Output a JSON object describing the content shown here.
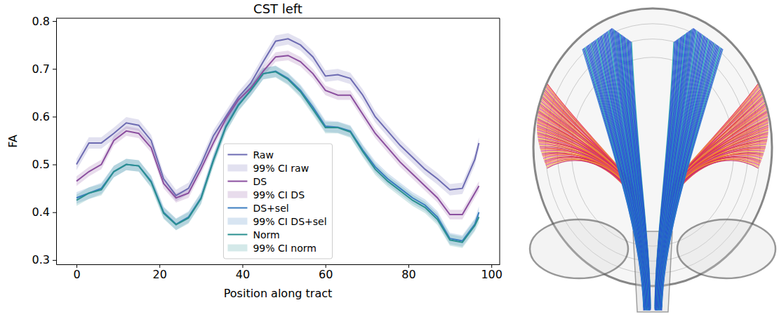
{
  "chart_data": {
    "type": "line",
    "title": "CST left",
    "x_label": "Position along tract",
    "y_label": "FA",
    "x": [
      0,
      3,
      6,
      9,
      12,
      15,
      18,
      21,
      24,
      27,
      30,
      33,
      36,
      39,
      42,
      45,
      48,
      51,
      54,
      57,
      60,
      63,
      66,
      69,
      72,
      75,
      78,
      81,
      84,
      87,
      90,
      93,
      96,
      97
    ],
    "xlim": [
      -4.9,
      102
    ],
    "xticks": [
      0,
      20,
      40,
      60,
      80,
      100
    ],
    "ylim": [
      0.291,
      0.806
    ],
    "yticks": [
      0.3,
      0.4,
      0.5,
      0.6,
      0.7,
      0.8
    ],
    "legend": "lower center",
    "series": [
      {
        "name": "Raw",
        "ci_name": "99% CI raw",
        "color": "#6d6bb2",
        "ci": 0.012,
        "values": [
          0.5,
          0.545,
          0.545,
          0.565,
          0.587,
          0.582,
          0.55,
          0.47,
          0.435,
          0.45,
          0.5,
          0.56,
          0.6,
          0.64,
          0.67,
          0.715,
          0.758,
          0.763,
          0.75,
          0.725,
          0.685,
          0.688,
          0.68,
          0.645,
          0.6,
          0.57,
          0.54,
          0.515,
          0.49,
          0.47,
          0.447,
          0.45,
          0.51,
          0.545
        ]
      },
      {
        "name": "DS",
        "ci_name": "99% CI DS",
        "color": "#8b4f9f",
        "ci": 0.01,
        "values": [
          0.465,
          0.485,
          0.5,
          0.55,
          0.57,
          0.565,
          0.535,
          0.46,
          0.43,
          0.44,
          0.49,
          0.545,
          0.595,
          0.635,
          0.66,
          0.695,
          0.725,
          0.728,
          0.715,
          0.69,
          0.655,
          0.645,
          0.645,
          0.605,
          0.565,
          0.535,
          0.505,
          0.48,
          0.455,
          0.43,
          0.395,
          0.395,
          0.44,
          0.455
        ]
      },
      {
        "name": "DS+sel",
        "ci_name": "99% CI DS+sel",
        "color": "#3b7dc0",
        "ci": 0.012,
        "values": [
          0.43,
          0.44,
          0.45,
          0.485,
          0.5,
          0.497,
          0.465,
          0.4,
          0.375,
          0.39,
          0.43,
          0.51,
          0.58,
          0.625,
          0.655,
          0.69,
          0.695,
          0.68,
          0.655,
          0.62,
          0.58,
          0.578,
          0.57,
          0.53,
          0.495,
          0.47,
          0.45,
          0.43,
          0.415,
          0.39,
          0.345,
          0.34,
          0.375,
          0.4
        ]
      },
      {
        "name": "Norm",
        "ci_name": "99% CI norm",
        "color": "#2a9090",
        "ci": 0.012,
        "values": [
          0.425,
          0.44,
          0.447,
          0.485,
          0.5,
          0.497,
          0.463,
          0.398,
          0.374,
          0.388,
          0.428,
          0.508,
          0.578,
          0.623,
          0.655,
          0.69,
          0.694,
          0.678,
          0.652,
          0.615,
          0.577,
          0.577,
          0.568,
          0.527,
          0.49,
          0.465,
          0.445,
          0.425,
          0.41,
          0.385,
          0.342,
          0.337,
          0.372,
          0.39
        ]
      }
    ]
  }
}
